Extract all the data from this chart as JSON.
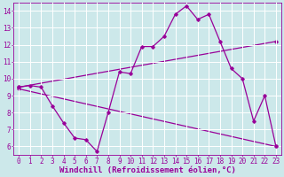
{
  "xlabel": "Windchill (Refroidissement éolien,°C)",
  "xlim": [
    -0.5,
    23.5
  ],
  "ylim": [
    5.5,
    14.5
  ],
  "xticks": [
    0,
    1,
    2,
    3,
    4,
    5,
    6,
    7,
    8,
    9,
    10,
    11,
    12,
    13,
    14,
    15,
    16,
    17,
    18,
    19,
    20,
    21,
    22,
    23
  ],
  "yticks": [
    6,
    7,
    8,
    9,
    10,
    11,
    12,
    13,
    14
  ],
  "bg_color": "#cce8ea",
  "grid_color": "#ffffff",
  "line_color": "#990099",
  "line1_x": [
    0,
    1,
    2,
    3,
    4,
    5,
    6,
    7,
    8,
    9,
    10,
    11,
    12,
    13,
    14,
    15,
    16,
    17,
    18,
    19,
    20,
    21,
    22,
    23
  ],
  "line1_y": [
    9.5,
    9.6,
    9.5,
    8.4,
    7.4,
    6.5,
    6.4,
    5.7,
    8.0,
    10.4,
    10.3,
    11.9,
    11.9,
    12.5,
    13.8,
    14.3,
    13.5,
    13.8,
    12.2,
    10.6,
    10.0,
    7.5,
    9.0,
    6.0
  ],
  "line2_x": [
    0,
    23
  ],
  "line2_y": [
    9.5,
    12.2
  ],
  "line3_x": [
    0,
    23
  ],
  "line3_y": [
    9.4,
    6.0
  ],
  "font_size_label": 6.5,
  "font_size_tick": 5.5
}
